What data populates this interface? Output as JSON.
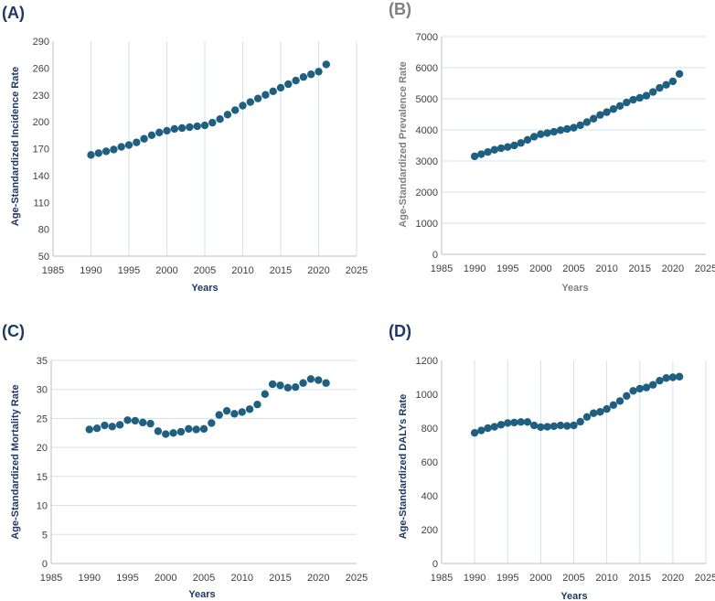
{
  "colors": {
    "marker": "#1f5f80",
    "grid": "#cfe3f0",
    "axis": "#bfbfbf",
    "dark_title": "#1f3864",
    "gray_title": "#7f7f7f"
  },
  "chart_data": [
    {
      "panel": "(A)",
      "type": "scatter",
      "title": "",
      "xlabel": "Years",
      "ylabel": "Age-Standardized Incidence Rate",
      "xlim": [
        1985,
        2025
      ],
      "ylim": [
        50,
        290
      ],
      "x_ticks": [
        "1985",
        "1990",
        "1995",
        "2000",
        "2005",
        "2010",
        "2015",
        "2020",
        "2025"
      ],
      "y_ticks": [
        "50",
        "80",
        "110",
        "140",
        "170",
        "200",
        "230",
        "260",
        "290"
      ],
      "grid": "vertical",
      "title_style": "dark",
      "x": [
        1990,
        1991,
        1992,
        1993,
        1994,
        1995,
        1996,
        1997,
        1998,
        1999,
        2000,
        2001,
        2002,
        2003,
        2004,
        2005,
        2006,
        2007,
        2008,
        2009,
        2010,
        2011,
        2012,
        2013,
        2014,
        2015,
        2016,
        2017,
        2018,
        2019,
        2020,
        2021
      ],
      "values": [
        163,
        165,
        167,
        169,
        172,
        174,
        177,
        181,
        185,
        188,
        190,
        192,
        193,
        194,
        195,
        196,
        199,
        203,
        208,
        213,
        218,
        222,
        226,
        230,
        234,
        238,
        242,
        246,
        250,
        253,
        256,
        264
      ]
    },
    {
      "panel": "(B)",
      "type": "scatter",
      "title": "",
      "xlabel": "Years",
      "ylabel": "Age-Standardized Prevalence Rate",
      "xlim": [
        1985,
        2025
      ],
      "ylim": [
        0,
        7000
      ],
      "x_ticks": [
        "1985",
        "1990",
        "1995",
        "2000",
        "2005",
        "2010",
        "2015",
        "2020",
        "2025"
      ],
      "y_ticks": [
        "0",
        "1000",
        "2000",
        "3000",
        "4000",
        "5000",
        "6000",
        "7000"
      ],
      "grid": "horizontal",
      "title_style": "gray",
      "x": [
        1990,
        1991,
        1992,
        1993,
        1994,
        1995,
        1996,
        1997,
        1998,
        1999,
        2000,
        2001,
        2002,
        2003,
        2004,
        2005,
        2006,
        2007,
        2008,
        2009,
        2010,
        2011,
        2012,
        2013,
        2014,
        2015,
        2016,
        2017,
        2018,
        2019,
        2020,
        2021
      ],
      "values": [
        3150,
        3220,
        3290,
        3360,
        3410,
        3450,
        3500,
        3580,
        3680,
        3780,
        3860,
        3900,
        3940,
        3990,
        4030,
        4070,
        4150,
        4250,
        4360,
        4480,
        4570,
        4670,
        4770,
        4880,
        4970,
        5030,
        5100,
        5220,
        5350,
        5450,
        5560,
        5800
      ]
    },
    {
      "panel": "(C)",
      "type": "scatter",
      "title": "",
      "xlabel": "Years",
      "ylabel": "Age-Standardized Mortality Rate",
      "xlim": [
        1985,
        2025
      ],
      "ylim": [
        0,
        35
      ],
      "x_ticks": [
        "1985",
        "1990",
        "1995",
        "2000",
        "2005",
        "2010",
        "2015",
        "2020",
        "2025"
      ],
      "y_ticks": [
        "0",
        "5",
        "10",
        "15",
        "20",
        "25",
        "30",
        "35"
      ],
      "grid": "horizontal",
      "title_style": "dark",
      "x": [
        1990,
        1991,
        1992,
        1993,
        1994,
        1995,
        1996,
        1997,
        1998,
        1999,
        2000,
        2001,
        2002,
        2003,
        2004,
        2005,
        2006,
        2007,
        2008,
        2009,
        2010,
        2011,
        2012,
        2013,
        2014,
        2015,
        2016,
        2017,
        2018,
        2019,
        2020,
        2021
      ],
      "values": [
        23.1,
        23.3,
        23.8,
        23.6,
        23.9,
        24.7,
        24.6,
        24.3,
        24.1,
        22.8,
        22.3,
        22.5,
        22.7,
        23.2,
        23.1,
        23.2,
        24.2,
        25.6,
        26.3,
        25.8,
        26.1,
        26.6,
        27.4,
        29.2,
        30.9,
        30.7,
        30.3,
        30.4,
        31.1,
        31.8,
        31.6,
        31.1
      ]
    },
    {
      "panel": "(D)",
      "type": "scatter",
      "title": "",
      "xlabel": "Years",
      "ylabel": "Age-Standardized DALYs Rate",
      "xlim": [
        1985,
        2025
      ],
      "ylim": [
        0,
        1200
      ],
      "x_ticks": [
        "1985",
        "1990",
        "1995",
        "2000",
        "2005",
        "2010",
        "2015",
        "2020",
        "2025"
      ],
      "y_ticks": [
        "0",
        "200",
        "400",
        "600",
        "800",
        "1000",
        "1200"
      ],
      "grid": "vertical",
      "title_style": "dark",
      "x": [
        1990,
        1991,
        1992,
        1993,
        1994,
        1995,
        1996,
        1997,
        1998,
        1999,
        2000,
        2001,
        2002,
        2003,
        2004,
        2005,
        2006,
        2007,
        2008,
        2009,
        2010,
        2011,
        2012,
        2013,
        2014,
        2015,
        2016,
        2017,
        2018,
        2019,
        2020,
        2021
      ],
      "values": [
        772,
        786,
        800,
        808,
        820,
        830,
        833,
        836,
        836,
        816,
        806,
        808,
        811,
        816,
        813,
        816,
        838,
        866,
        888,
        896,
        913,
        936,
        960,
        990,
        1020,
        1033,
        1040,
        1056,
        1080,
        1096,
        1100,
        1104
      ]
    }
  ]
}
